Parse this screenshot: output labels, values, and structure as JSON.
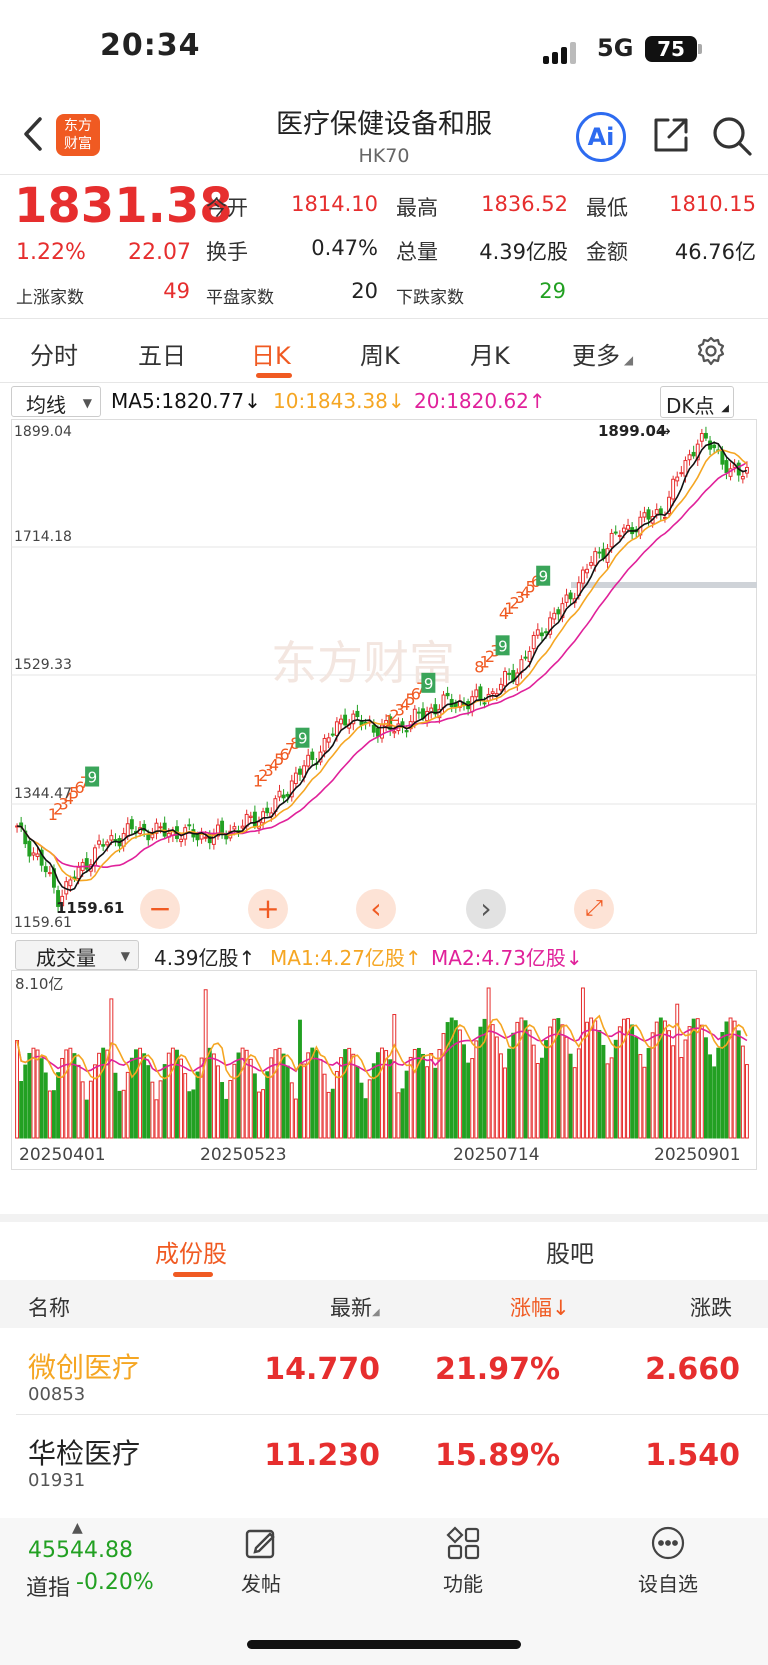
{
  "status_bar": {
    "time": "20:34",
    "network": "5G",
    "battery": "75"
  },
  "header": {
    "title": "医疗保健设备和服",
    "code": "HK70",
    "logo_line1": "东方",
    "logo_line2": "财富",
    "ai_label": "Ai"
  },
  "quote": {
    "price": "1831.38",
    "change_pct": "1.22%",
    "change_abs": "22.07",
    "open_label": "今开",
    "open": "1814.10",
    "high_label": "最高",
    "high": "1836.52",
    "low_label": "最低",
    "low": "1810.15",
    "turnover_label": "换手",
    "turnover": "0.47%",
    "volume_label": "总量",
    "volume": "4.39亿股",
    "amount_label": "金额",
    "amount": "46.76亿",
    "up_label": "上涨家数",
    "up": "49",
    "flat_label": "平盘家数",
    "flat": "20",
    "down_label": "下跌家数",
    "down": "29"
  },
  "period_tabs": [
    "分时",
    "五日",
    "日K",
    "周K",
    "月K",
    "更多"
  ],
  "active_period": "日K",
  "indicator": {
    "selector": "均线",
    "ma5": "MA5:1820.77↓",
    "ma10": "10:1843.38↓",
    "ma20": "20:1820.62↑",
    "dk": "DK点"
  },
  "kchart": {
    "y_labels": [
      "1899.04",
      "1714.18",
      "1529.33",
      "1344.47",
      "1159.61"
    ],
    "high_mark": "1899.04",
    "low_mark": "1159.61",
    "watermark": "东方财富",
    "signals_red": [
      "1",
      "2",
      "3",
      "4",
      "5",
      "6",
      "7",
      "1",
      "2",
      "3",
      "4",
      "5",
      "6",
      "7",
      "8",
      "1",
      "2",
      "3",
      "4",
      "5",
      "6",
      "7",
      "8",
      "1",
      "2",
      "3",
      "4",
      "1",
      "2",
      "3",
      "4",
      "5",
      "6",
      "7",
      "1",
      "2",
      "3",
      "4",
      "5",
      "6",
      "7"
    ],
    "signals_green": [
      "9",
      "9",
      "9",
      "9",
      "9"
    ],
    "controls": [
      "−",
      "+",
      "‹",
      "›",
      "⤢"
    ]
  },
  "volume": {
    "selector": "成交量",
    "total": "4.39亿股↑",
    "ma1": "MA1:4.27亿股↑",
    "ma2": "MA2:4.73亿股↓",
    "max_label": "8.10亿",
    "x_labels": [
      "20250401",
      "20250523",
      "20250714",
      "20250901"
    ]
  },
  "chart_data": {
    "type": "candlestick",
    "y_range": [
      1159.61,
      1899.04
    ],
    "volume_max": "8.10亿",
    "dates": [
      "20250401",
      "20250523",
      "20250714",
      "20250901"
    ],
    "last_close": 1831.38
  },
  "list": {
    "tabs": [
      "成份股",
      "股吧"
    ],
    "headers": {
      "name": "名称",
      "latest": "最新",
      "pct": "涨幅↓",
      "chg": "涨跌"
    },
    "rows": [
      {
        "name": "微创医疗",
        "code": "00853",
        "latest": "14.770",
        "pct": "21.97%",
        "chg": "2.660",
        "highlight": true
      },
      {
        "name": "华检医疗",
        "code": "01931",
        "latest": "11.230",
        "pct": "15.89%",
        "chg": "1.540",
        "highlight": false
      }
    ]
  },
  "bottom": {
    "index_value": "45544.88",
    "index_name": "道指",
    "index_change": "-0.20%",
    "post": "发帖",
    "func": "功能",
    "watch": "设自选"
  },
  "colors": {
    "up": "#e62e2e",
    "down": "#22a022",
    "accent": "#f05a22",
    "ma5": "#111111",
    "ma10": "#f5a623",
    "ma20": "#e0219a"
  }
}
